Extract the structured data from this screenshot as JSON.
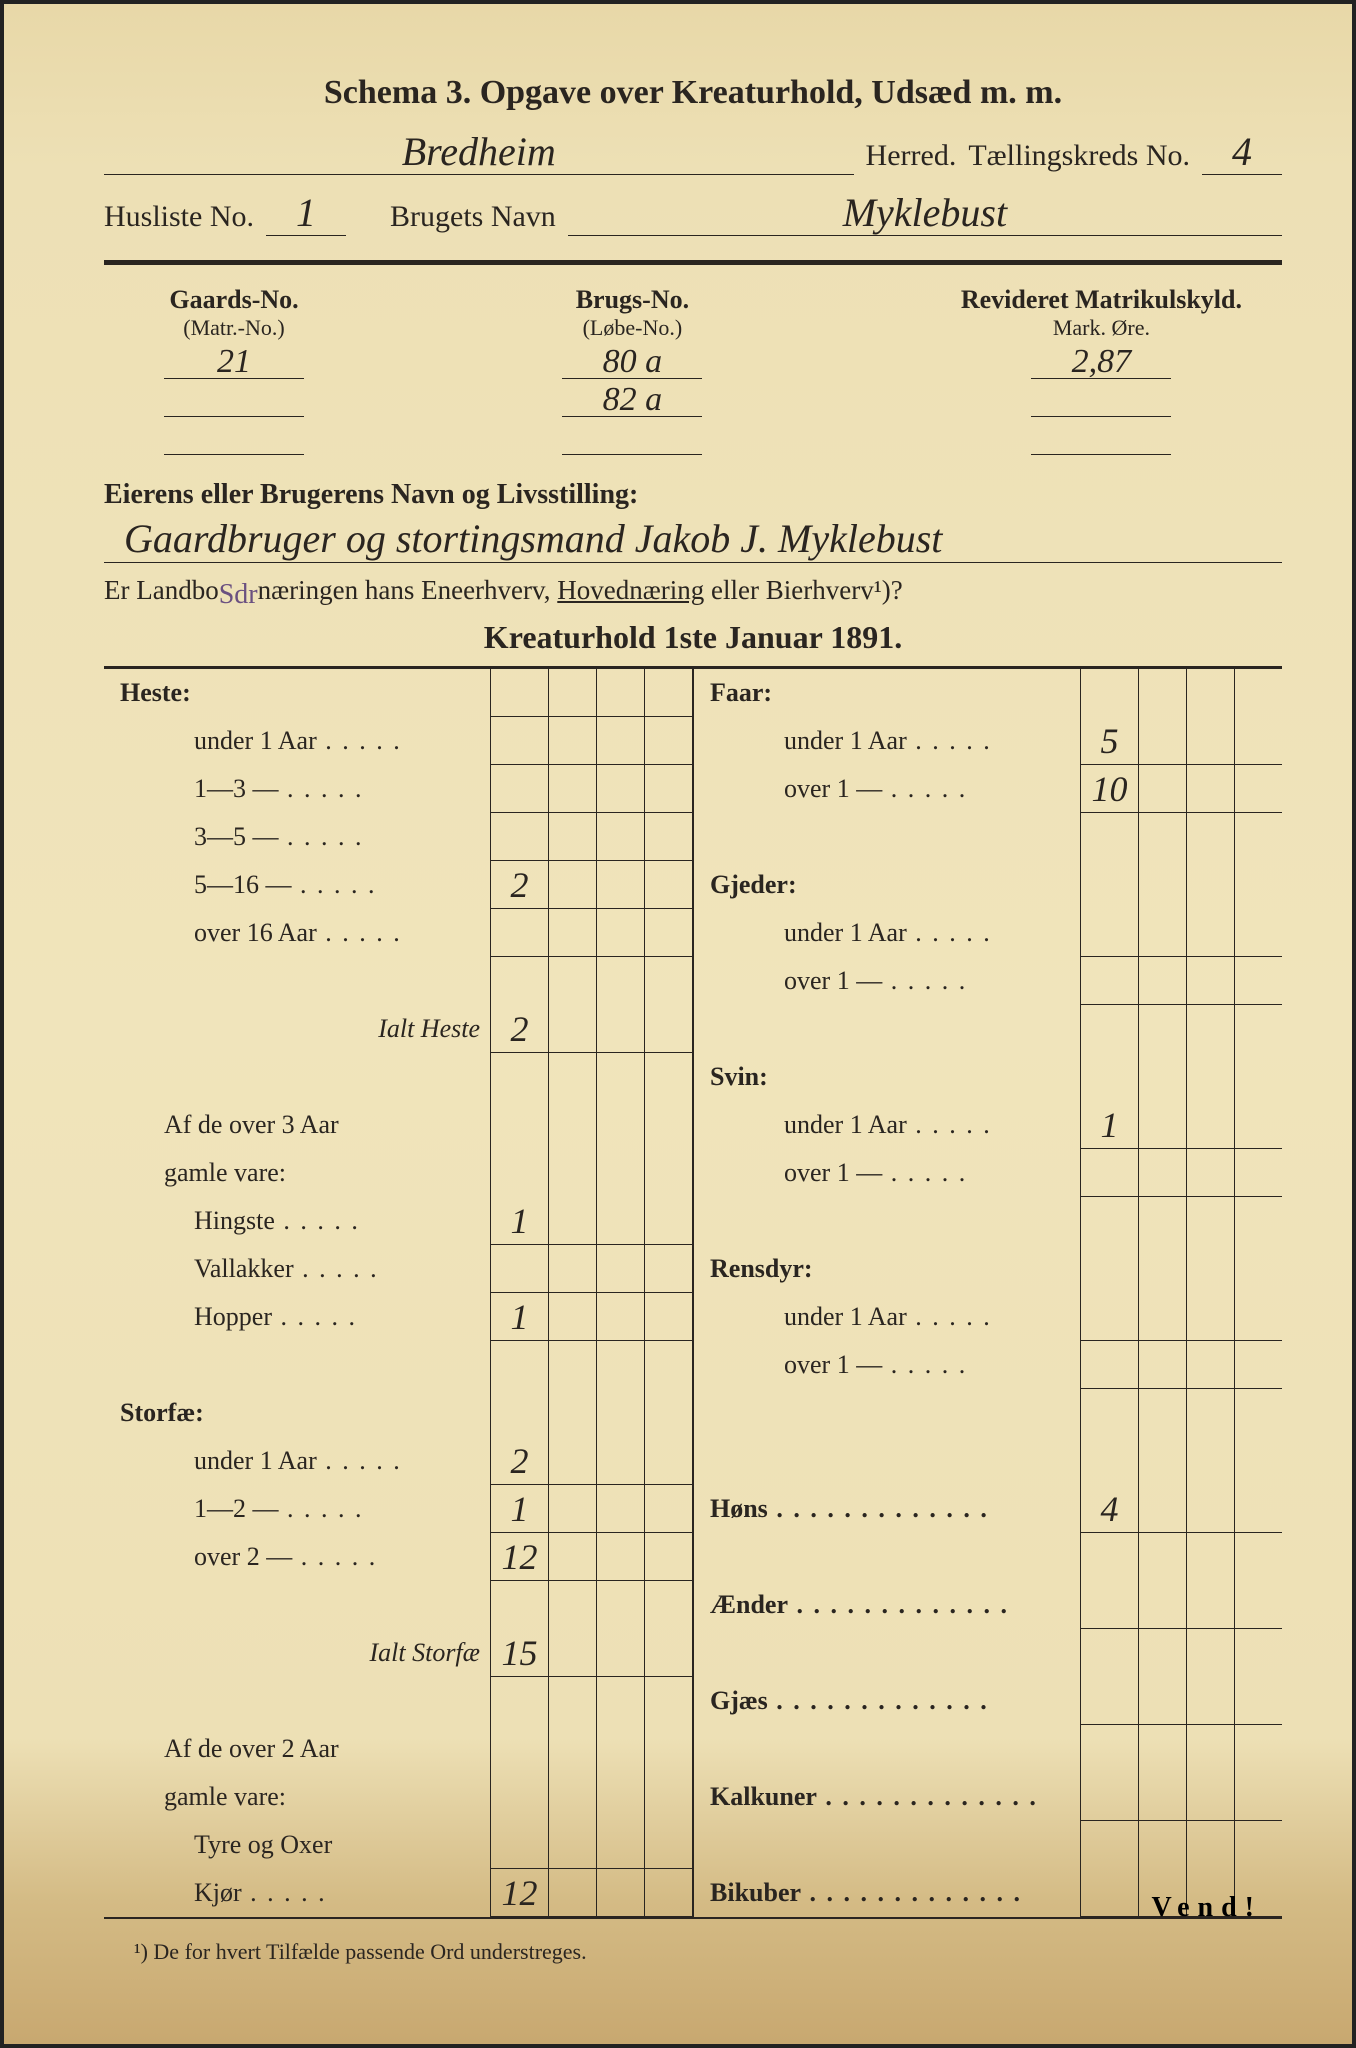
{
  "colors": {
    "paper_bg_top": "#e8d8a8",
    "paper_bg_mid": "#f0e4bb",
    "paper_bg_bottom": "#c8a870",
    "ink": "#2a2520",
    "handwriting": "#3a3025",
    "purple_ink": "#6a5080",
    "border": "#222222"
  },
  "typography": {
    "printed_family": "Times New Roman, serif",
    "handwritten_family": "Brush Script MT, cursive",
    "title_size_pt": 26,
    "body_size_pt": 20,
    "hand_size_pt": 30
  },
  "title": "Schema 3.  Opgave over Kreaturhold, Udsæd m. m.",
  "header": {
    "herred_label": "Herred.",
    "herred_value": "Bredheim",
    "tkrets_label": "Tællingskreds No.",
    "tkrets_value": "4",
    "husliste_label": "Husliste No.",
    "husliste_value": "1",
    "brugets_label": "Brugets Navn",
    "brugets_value": "Myklebust"
  },
  "gaard": {
    "col1_hdr": "Gaards-No.",
    "col1_sub": "(Matr.-No.)",
    "col1_vals": [
      "21",
      "",
      ""
    ],
    "col2_hdr": "Brugs-No.",
    "col2_sub": "(Løbe-No.)",
    "col2_vals": [
      "80 a",
      "82 a",
      ""
    ],
    "col3_hdr": "Revideret Matrikulskyld.",
    "col3_sub": "Mark.  Øre.",
    "col3_vals": [
      "2,87",
      "",
      ""
    ]
  },
  "owner": {
    "label": "Eierens eller Brugerens Navn og Livsstilling:",
    "value": "Gaardbruger og stortingsmand Jakob J. Myklebust",
    "question_pre": "Er Landbo",
    "insert": "Sdr",
    "question_mid": "næringen hans Eneerhverv, ",
    "question_under": "Hovednæring",
    "question_post": " eller Bierhverv¹)?"
  },
  "subtitle": "Kreaturhold 1ste Januar 1891.",
  "left_rows": [
    {
      "label": "Heste:",
      "bold": true,
      "vals": [
        "",
        "",
        "",
        ""
      ]
    },
    {
      "label": "under 1 Aar",
      "indent": 2,
      "dots": true,
      "vals": [
        "",
        "",
        "",
        ""
      ]
    },
    {
      "label": "1—3   —",
      "indent": 2,
      "dots": true,
      "vals": [
        "",
        "",
        "",
        ""
      ]
    },
    {
      "label": "3—5   —",
      "indent": 2,
      "dots": true,
      "vals": [
        "",
        "",
        "",
        ""
      ]
    },
    {
      "label": "5—16 —",
      "indent": 2,
      "dots": true,
      "vals": [
        "2",
        "",
        "",
        ""
      ]
    },
    {
      "label": "over 16 Aar",
      "indent": 2,
      "dots": true,
      "vals": [
        "",
        "",
        "",
        ""
      ]
    },
    {
      "label": "",
      "spacer": true
    },
    {
      "label": "Ialt Heste",
      "italic": true,
      "vals": [
        "2",
        "",
        "",
        ""
      ]
    },
    {
      "label": "",
      "spacer": true
    },
    {
      "label": "Af de over 3 Aar",
      "indent": 1,
      "vals": [
        "",
        "",
        "",
        ""
      ],
      "noborder": true
    },
    {
      "label": "gamle vare:",
      "indent": 1,
      "vals": [
        "",
        "",
        "",
        ""
      ],
      "noborder": true
    },
    {
      "label": "Hingste",
      "indent": 2,
      "dots": true,
      "vals": [
        "1",
        "",
        "",
        ""
      ]
    },
    {
      "label": "Vallakker",
      "indent": 2,
      "dots": true,
      "vals": [
        "",
        "",
        "",
        ""
      ]
    },
    {
      "label": "Hopper",
      "indent": 2,
      "dots": true,
      "vals": [
        "1",
        "",
        "",
        ""
      ]
    },
    {
      "label": "",
      "spacer": true
    },
    {
      "label": "Storfæ:",
      "bold": true,
      "vals": [
        "",
        "",
        "",
        ""
      ],
      "noborder": true
    },
    {
      "label": "under 1 Aar",
      "indent": 2,
      "dots": true,
      "vals": [
        "2",
        "",
        "",
        ""
      ]
    },
    {
      "label": "1—2   —",
      "indent": 2,
      "dots": true,
      "vals": [
        "1",
        "",
        "",
        ""
      ]
    },
    {
      "label": "over 2   —",
      "indent": 2,
      "dots": true,
      "vals": [
        "12",
        "",
        "",
        ""
      ]
    },
    {
      "label": "",
      "spacer": true
    },
    {
      "label": "Ialt Storfæ",
      "italic": true,
      "vals": [
        "15",
        "",
        "",
        ""
      ]
    },
    {
      "label": "",
      "spacer": true
    },
    {
      "label": "Af de over 2 Aar",
      "indent": 1,
      "vals": [
        "",
        "",
        "",
        ""
      ],
      "noborder": true
    },
    {
      "label": "gamle vare:",
      "indent": 1,
      "vals": [
        "",
        "",
        "",
        ""
      ],
      "noborder": true
    },
    {
      "label": "Tyre og Oxer",
      "indent": 2,
      "vals": [
        "",
        "",
        "",
        ""
      ]
    },
    {
      "label": "Kjør",
      "indent": 2,
      "dots": true,
      "vals": [
        "12",
        "",
        "",
        ""
      ]
    }
  ],
  "right_rows": [
    {
      "label": "Faar:",
      "bold": true,
      "vals": [
        "",
        "",
        "",
        ""
      ],
      "noborder": true
    },
    {
      "label": "under 1 Aar",
      "indent": 2,
      "dots": true,
      "vals": [
        "5",
        "",
        "",
        ""
      ]
    },
    {
      "label": "over 1   —",
      "indent": 2,
      "dots": true,
      "vals": [
        "10",
        "",
        "",
        ""
      ]
    },
    {
      "label": "",
      "spacer": true
    },
    {
      "label": "Gjeder:",
      "bold": true,
      "vals": [
        "",
        "",
        "",
        ""
      ],
      "noborder": true
    },
    {
      "label": "under 1 Aar",
      "indent": 2,
      "dots": true,
      "vals": [
        "",
        "",
        "",
        ""
      ]
    },
    {
      "label": "over 1   —",
      "indent": 2,
      "dots": true,
      "vals": [
        "",
        "",
        "",
        ""
      ]
    },
    {
      "label": "",
      "spacer": true
    },
    {
      "label": "Svin:",
      "bold": true,
      "vals": [
        "",
        "",
        "",
        ""
      ],
      "noborder": true
    },
    {
      "label": "under 1 Aar",
      "indent": 2,
      "dots": true,
      "vals": [
        "1",
        "",
        "",
        ""
      ]
    },
    {
      "label": "over 1   —",
      "indent": 2,
      "dots": true,
      "vals": [
        "",
        "",
        "",
        ""
      ]
    },
    {
      "label": "",
      "spacer": true
    },
    {
      "label": "Rensdyr:",
      "bold": true,
      "vals": [
        "",
        "",
        "",
        ""
      ],
      "noborder": true
    },
    {
      "label": "under 1 Aar",
      "indent": 2,
      "dots": true,
      "vals": [
        "",
        "",
        "",
        ""
      ]
    },
    {
      "label": "over 1   —",
      "indent": 2,
      "dots": true,
      "vals": [
        "",
        "",
        "",
        ""
      ]
    },
    {
      "label": "",
      "spacer": true
    },
    {
      "label": "",
      "spacer": true
    },
    {
      "label": "Høns",
      "bold": true,
      "dotslong": true,
      "vals": [
        "4",
        "",
        "",
        ""
      ]
    },
    {
      "label": "",
      "spacer": true
    },
    {
      "label": "Ænder",
      "bold": true,
      "dotslong": true,
      "vals": [
        "",
        "",
        "",
        ""
      ]
    },
    {
      "label": "",
      "spacer": true
    },
    {
      "label": "Gjæs",
      "bold": true,
      "dotslong": true,
      "vals": [
        "",
        "",
        "",
        ""
      ]
    },
    {
      "label": "",
      "spacer": true
    },
    {
      "label": "Kalkuner",
      "bold": true,
      "dotslong": true,
      "vals": [
        "",
        "",
        "",
        ""
      ]
    },
    {
      "label": "",
      "spacer": true
    },
    {
      "label": "Bikuber",
      "bold": true,
      "dotslong": true,
      "vals": [
        "",
        "",
        "",
        ""
      ]
    }
  ],
  "footnote": "¹) De for hvert Tilfælde passende Ord understreges.",
  "vend": "Vend!"
}
